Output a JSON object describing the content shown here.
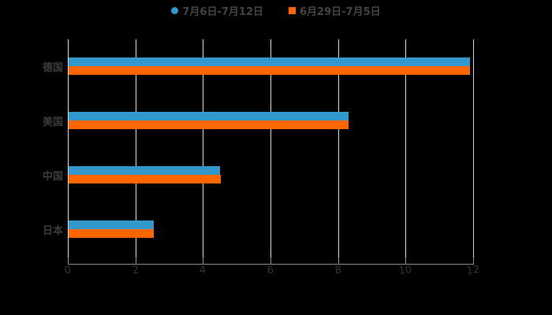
{
  "chart_data": {
    "type": "bar",
    "orientation": "horizontal",
    "categories": [
      "德国",
      "美国",
      "中国",
      "日本"
    ],
    "series": [
      {
        "name": "7月6日-7月12日",
        "color": "#3399cc",
        "marker": "circle",
        "values": [
          11.88,
          8.28,
          4.48,
          2.52
        ]
      },
      {
        "name": "6月29日-7月5日",
        "color": "#ff6600",
        "marker": "square",
        "values": [
          11.88,
          8.28,
          4.51,
          2.52
        ]
      }
    ],
    "title": "",
    "xlabel": "",
    "ylabel": "",
    "xlim": [
      0,
      12
    ],
    "xticks": [
      "0",
      "2",
      "4",
      "6",
      "8",
      "10",
      "12"
    ],
    "grid": "vertical",
    "legend_position": "top"
  },
  "legend": {
    "items": [
      {
        "label": "7月6日-7月12日",
        "color": "#3399cc"
      },
      {
        "label": "6月29日-7月5日",
        "color": "#ff6600"
      }
    ]
  }
}
